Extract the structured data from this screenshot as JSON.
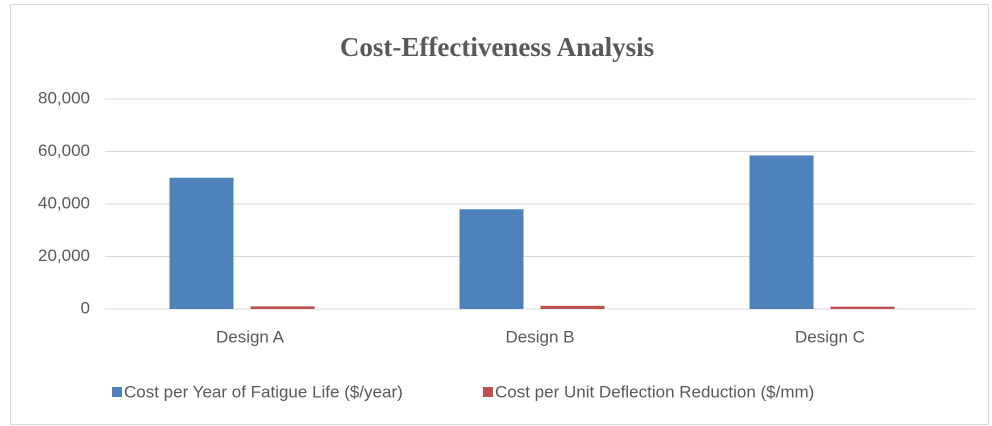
{
  "chart_data": {
    "type": "bar",
    "title": "Cost-Effectiveness Analysis",
    "categories": [
      "Design A",
      "Design B",
      "Design C"
    ],
    "series": [
      {
        "name": "Cost per Year of Fatigue Life ($/year)",
        "color": "#4f81bd",
        "values": [
          50000,
          38000,
          58500
        ]
      },
      {
        "name": "Cost per Unit Deflection Reduction ($/mm)",
        "color": "#c0504d",
        "values": [
          1000,
          1200,
          900
        ]
      }
    ],
    "ylim": [
      0,
      80000
    ],
    "yticks": [
      0,
      {
        "value": 20000,
        "label": "20,000"
      },
      {
        "value": 40000,
        "label": "40,000"
      },
      {
        "value": 60000,
        "label": "60,000"
      },
      {
        "value": 80000,
        "label": "80,000"
      }
    ],
    "grid": true,
    "legend": "bottom"
  }
}
